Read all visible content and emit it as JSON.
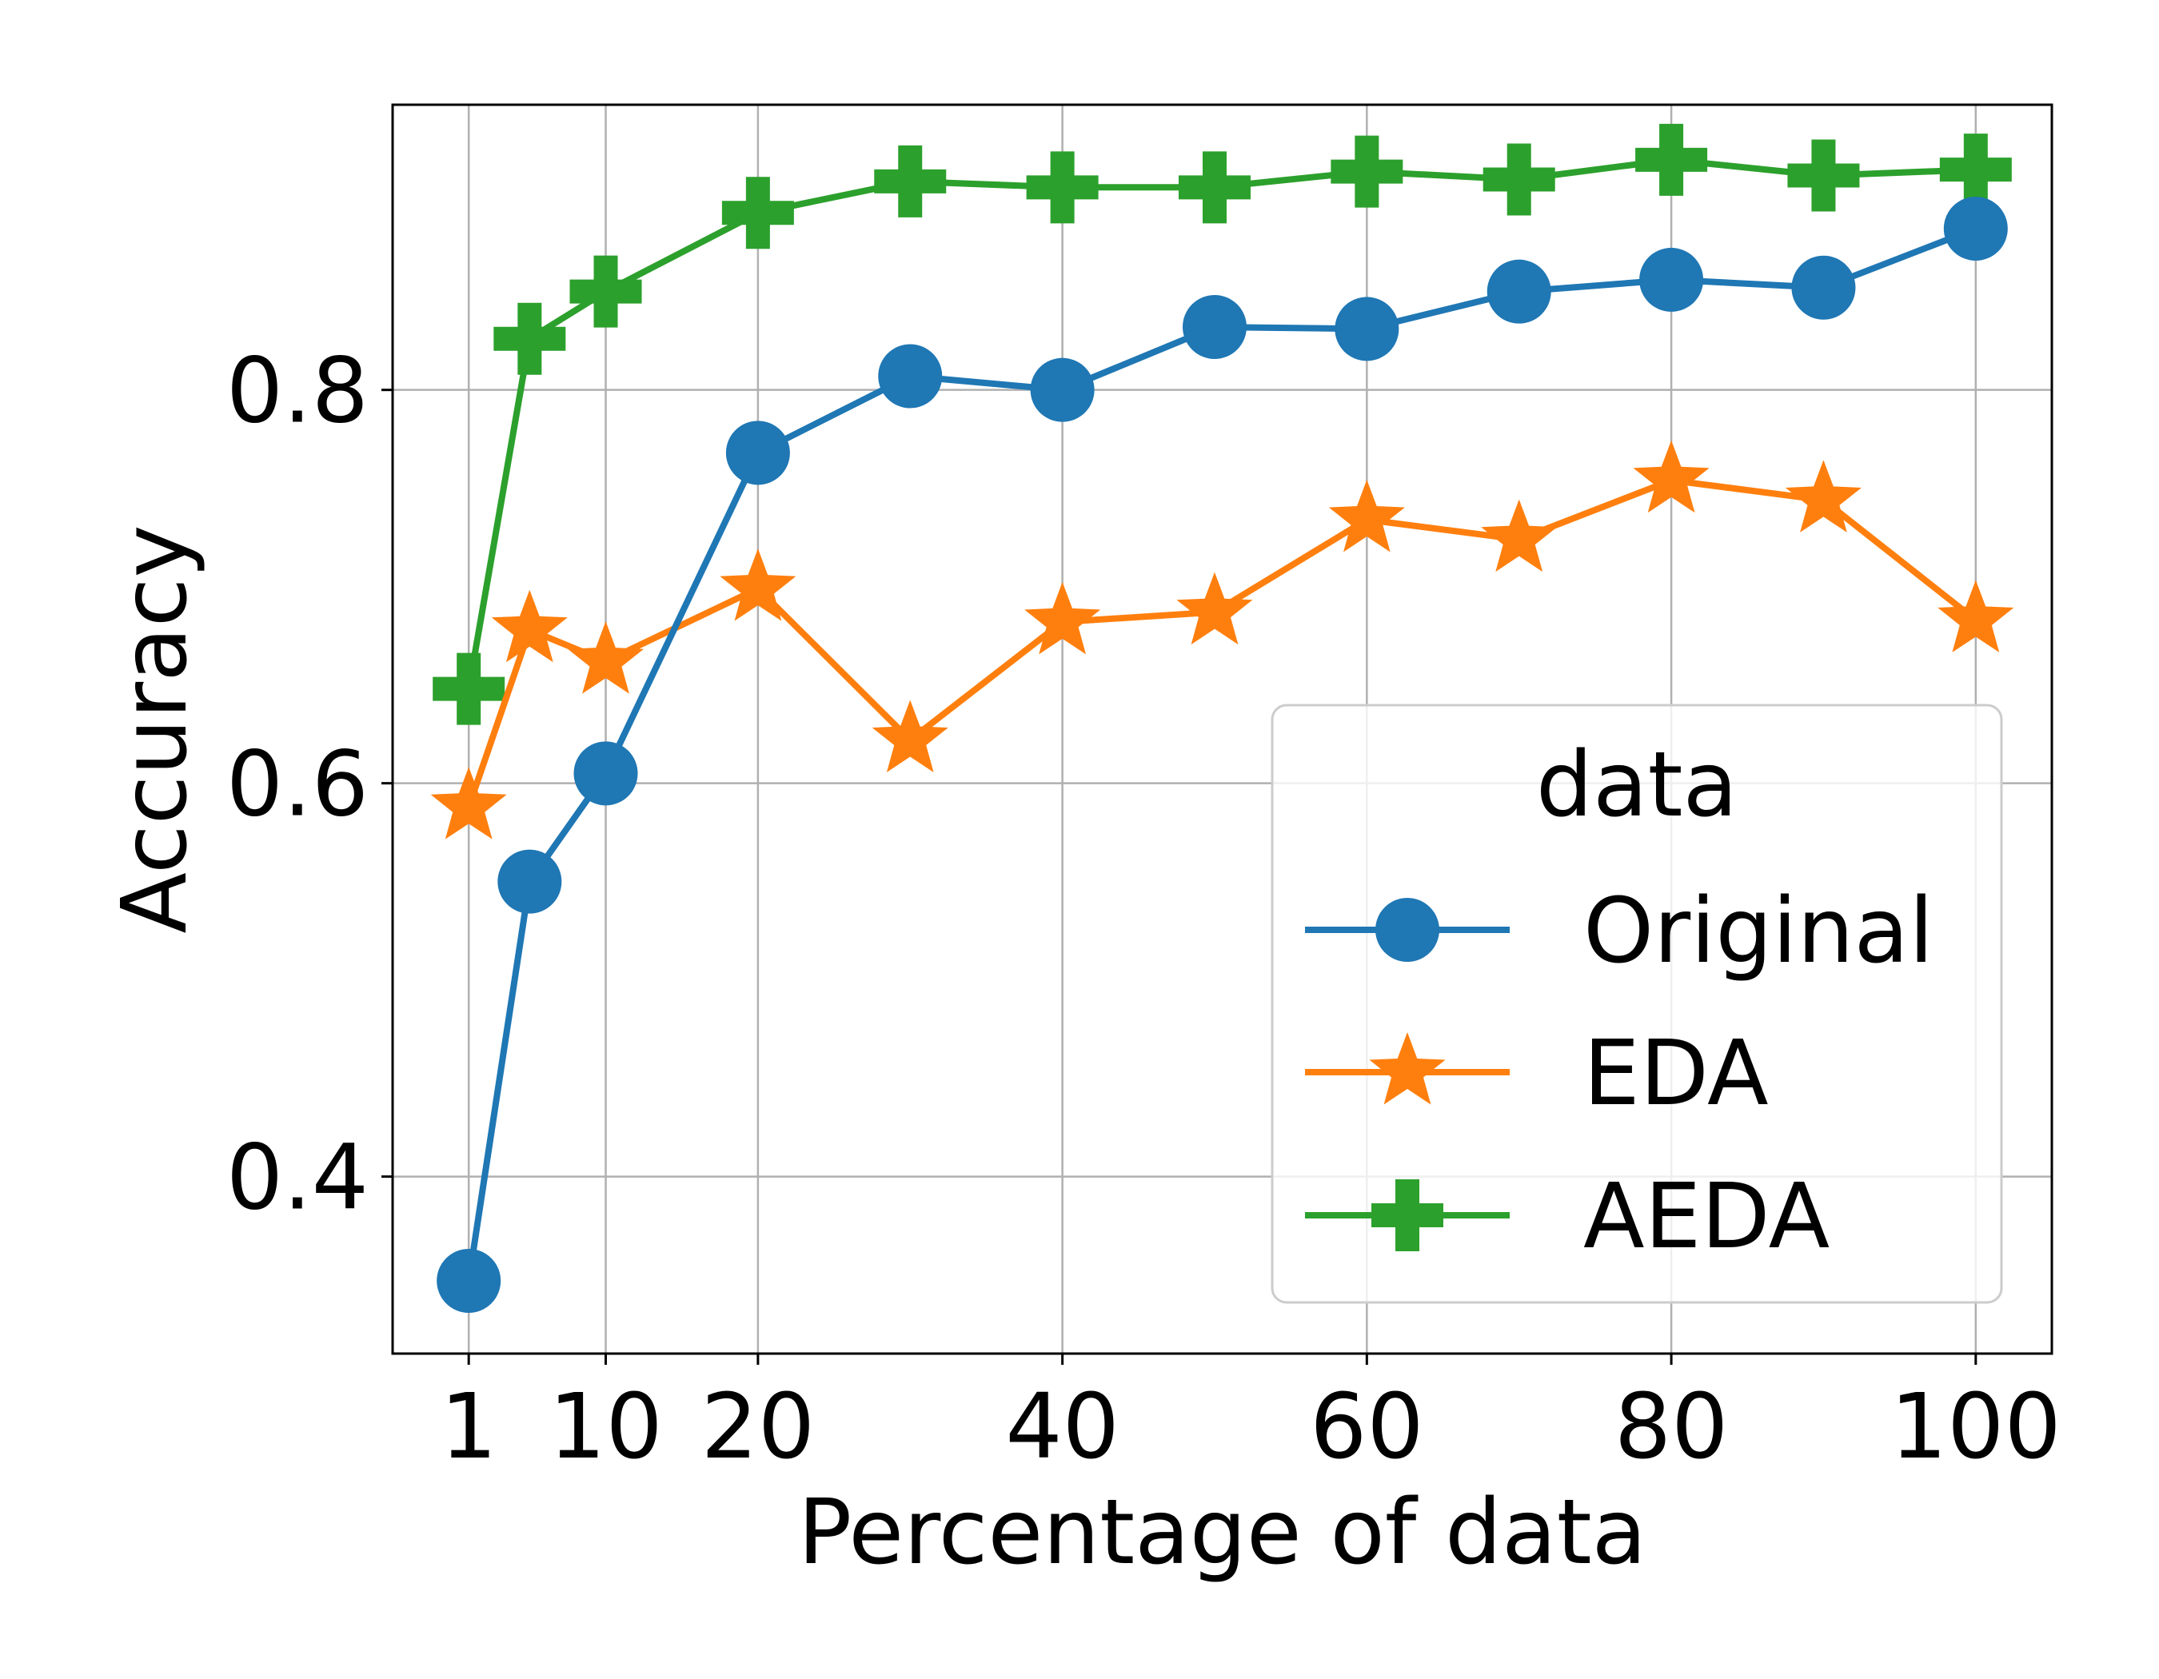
{
  "chart_data": {
    "type": "line",
    "title": "",
    "xlabel": "Percentage of data",
    "ylabel": "Accuracy",
    "xlim": [
      -4,
      105
    ],
    "ylim": [
      0.31,
      0.945
    ],
    "xticks": [
      1,
      10,
      20,
      40,
      60,
      80,
      100
    ],
    "xtick_labels": [
      "1",
      "10",
      "20",
      "40",
      "60",
      "80",
      "100"
    ],
    "yticks": [
      0.4,
      0.6,
      0.8
    ],
    "ytick_labels": [
      "0.4",
      "0.6",
      "0.8"
    ],
    "grid": true,
    "x": [
      1,
      5,
      10,
      20,
      30,
      40,
      50,
      60,
      70,
      80,
      90,
      100
    ],
    "series": [
      {
        "name": "Original",
        "marker": "circle",
        "color": "#1f77b4",
        "values": [
          0.347,
          0.55,
          0.605,
          0.768,
          0.807,
          0.8,
          0.832,
          0.831,
          0.85,
          0.856,
          0.852,
          0.882
        ]
      },
      {
        "name": "EDA",
        "marker": "star",
        "color": "#ff7f0e",
        "values": [
          0.588,
          0.678,
          0.662,
          0.699,
          0.622,
          0.682,
          0.687,
          0.734,
          0.724,
          0.754,
          0.744,
          0.683
        ]
      },
      {
        "name": "AEDA",
        "marker": "plus",
        "color": "#2ca02c",
        "values": [
          0.648,
          0.826,
          0.85,
          0.89,
          0.906,
          0.903,
          0.903,
          0.911,
          0.907,
          0.917,
          0.909,
          0.912
        ]
      }
    ],
    "legend": {
      "title": "data",
      "position": "lower-right",
      "entries": [
        "Original",
        "EDA",
        "AEDA"
      ]
    }
  }
}
